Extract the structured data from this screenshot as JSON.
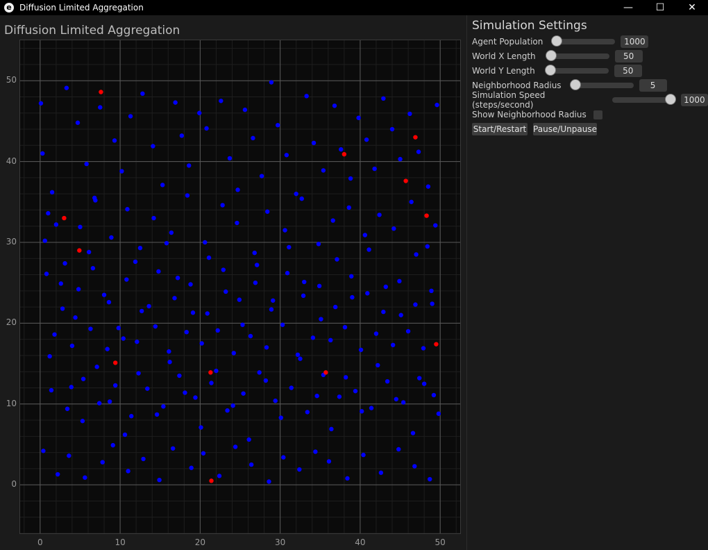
{
  "window": {
    "title": "Diffusion Limited Aggregation",
    "app_icon": "e",
    "controls": {
      "minimize": "—",
      "maximize": "☐",
      "close": "✕"
    }
  },
  "plot": {
    "heading": "Diffusion Limited Aggregation",
    "x_ticks": [
      "0",
      "10",
      "20",
      "30",
      "40",
      "50"
    ],
    "y_ticks": [
      "0",
      "10",
      "20",
      "30",
      "40",
      "50"
    ],
    "colors": {
      "free_agent": "#0000ff",
      "aggregated_agent": "#ff0000",
      "background": "#0b0b0b"
    }
  },
  "chart_data": {
    "type": "scatter",
    "title": "Diffusion Limited Aggregation",
    "xlim": [
      -2.5,
      52.5
    ],
    "ylim": [
      -6,
      55
    ],
    "grid": true,
    "series": [
      {
        "color": "#ff0000",
        "x": [
          7.6,
          46.9,
          38.0,
          45.7,
          3.0,
          48.3,
          4.9,
          9.4,
          21.3,
          35.7,
          49.5,
          21.4
        ],
        "y": [
          48.6,
          43.0,
          40.9,
          37.6,
          33.0,
          33.3,
          29.0,
          15.1,
          13.9,
          13.9,
          17.4,
          0.5
        ]
      },
      {
        "color": "#0000ff",
        "x": [
          0.1,
          0.3,
          1.5,
          2.0,
          3.3,
          4.7,
          5.8,
          6.8,
          7.5,
          9.3,
          10.2,
          11.3,
          12.8,
          14.1,
          15.3,
          16.9,
          17.7,
          18.6,
          19.9,
          20.8,
          22.6,
          23.7,
          24.7,
          25.6,
          26.6,
          27.7,
          28.9,
          29.7,
          30.8,
          32.0,
          33.3,
          34.2,
          35.4,
          36.8,
          37.6,
          38.8,
          39.8,
          40.8,
          41.8,
          42.9,
          44.0,
          45.0,
          46.2,
          47.3,
          48.5,
          49.6,
          0.6,
          2.6,
          4.4,
          6.1,
          8.0,
          9.8,
          11.9,
          13.6,
          15.8,
          17.2,
          19.1,
          21.1,
          23.2,
          25.3,
          27.1,
          29.1,
          31.1,
          33.0,
          35.1,
          37.1,
          39.0,
          41.1,
          43.2,
          45.1,
          47.0,
          49.0,
          1.2,
          3.9,
          5.3,
          7.1,
          8.7,
          10.6,
          12.3,
          14.6,
          16.2,
          18.1,
          20.1,
          22.0,
          24.1,
          26.1,
          28.2,
          30.1,
          32.5,
          34.6,
          36.4,
          38.2,
          40.2,
          42.2,
          44.5,
          46.6,
          48.0,
          49.8,
          0.4,
          2.2,
          3.6,
          5.6,
          7.8,
          9.1,
          11.0,
          12.9,
          14.9,
          16.6,
          18.9,
          20.4,
          22.4,
          24.4,
          26.4,
          28.6,
          30.4,
          32.4,
          34.4,
          36.1,
          38.4,
          40.4,
          42.6,
          44.8,
          46.8,
          48.7,
          1.0,
          3.1,
          5.0,
          6.9,
          8.9,
          10.9,
          12.5,
          14.2,
          16.4,
          18.4,
          20.6,
          22.8,
          24.6,
          26.8,
          28.4,
          30.6,
          32.7,
          34.8,
          36.6,
          38.6,
          40.6,
          42.4,
          44.2,
          46.4,
          48.4,
          49.4,
          1.8,
          4.0,
          6.3,
          8.4,
          10.4,
          12.1,
          14.4,
          16.1,
          18.3,
          20.2,
          22.2,
          24.2,
          26.3,
          28.3,
          30.3,
          32.2,
          34.1,
          36.3,
          38.1,
          40.1,
          42.0,
          44.1,
          46.0,
          47.9,
          0.8,
          2.8,
          4.8,
          6.6,
          8.6,
          10.8,
          12.7,
          14.8,
          16.8,
          18.8,
          20.9,
          22.9,
          24.9,
          26.9,
          28.9,
          30.9,
          32.9,
          34.9,
          36.9,
          38.9,
          40.9,
          42.9,
          44.9,
          46.9,
          48.9,
          1.4,
          3.4,
          5.4,
          7.4,
          9.4,
          11.4,
          13.4,
          15.4,
          17.4,
          19.4,
          21.4,
          23.4,
          25.4,
          27.4,
          29.4,
          31.4,
          33.4,
          35.4,
          37.4,
          39.4,
          41.4,
          43.4,
          45.4,
          47.4,
          49.2
        ],
        "y": [
          47.2,
          41.0,
          36.2,
          32.2,
          49.1,
          44.8,
          39.7,
          35.5,
          46.7,
          42.6,
          38.8,
          45.6,
          48.4,
          41.9,
          37.1,
          47.3,
          43.2,
          39.5,
          46.0,
          44.1,
          47.5,
          40.4,
          36.5,
          46.4,
          42.9,
          38.2,
          49.8,
          44.5,
          40.8,
          36.0,
          48.1,
          42.3,
          38.9,
          46.9,
          41.5,
          37.9,
          45.4,
          42.7,
          39.1,
          47.8,
          44.0,
          40.3,
          45.9,
          41.2,
          36.9,
          47.0,
          30.2,
          24.9,
          20.7,
          28.8,
          23.5,
          19.4,
          27.6,
          22.1,
          29.9,
          25.6,
          21.3,
          28.1,
          23.9,
          19.8,
          27.2,
          22.8,
          29.4,
          25.1,
          20.5,
          27.9,
          23.2,
          29.1,
          24.5,
          21.0,
          28.5,
          22.4,
          15.9,
          12.1,
          7.9,
          14.6,
          10.3,
          6.2,
          13.8,
          8.7,
          15.2,
          11.4,
          7.1,
          14.1,
          9.8,
          5.6,
          12.9,
          8.3,
          15.6,
          11.0,
          6.9,
          13.3,
          9.1,
          14.8,
          10.6,
          6.4,
          12.5,
          8.8,
          4.2,
          1.3,
          3.6,
          0.9,
          2.8,
          4.9,
          1.7,
          3.2,
          0.6,
          4.5,
          2.1,
          3.9,
          1.1,
          4.7,
          2.5,
          0.4,
          3.4,
          1.9,
          4.1,
          2.9,
          0.8,
          3.7,
          1.5,
          4.4,
          2.3,
          0.7,
          33.6,
          27.4,
          31.9,
          35.2,
          30.6,
          34.1,
          29.3,
          33.0,
          31.2,
          35.8,
          30.0,
          34.6,
          32.4,
          28.7,
          33.8,
          31.5,
          35.4,
          29.8,
          32.7,
          34.3,
          30.9,
          33.4,
          31.7,
          35.0,
          29.5,
          32.1,
          18.6,
          17.2,
          19.3,
          16.8,
          18.1,
          17.7,
          19.6,
          16.5,
          18.9,
          17.5,
          19.1,
          16.3,
          18.4,
          17.0,
          19.8,
          16.1,
          18.2,
          17.9,
          19.5,
          16.7,
          18.7,
          17.3,
          19.0,
          16.9,
          26.1,
          21.8,
          24.2,
          26.8,
          22.6,
          25.4,
          21.5,
          26.4,
          23.1,
          24.8,
          21.2,
          26.6,
          22.9,
          25.0,
          21.7,
          26.2,
          23.4,
          24.6,
          22.0,
          25.8,
          23.7,
          21.4,
          25.2,
          22.3,
          24.0,
          11.7,
          9.4,
          13.1,
          10.1,
          12.3,
          8.5,
          11.9,
          9.7,
          13.5,
          10.8,
          12.6,
          9.2,
          11.3,
          13.9,
          10.4,
          12.0,
          9.0,
          13.6,
          10.9,
          11.6,
          9.5,
          12.8,
          10.2,
          13.2,
          11.1
        ]
      }
    ]
  },
  "settings": {
    "title": "Simulation Settings",
    "agent_population": {
      "label": "Agent Population",
      "value": "1000",
      "fraction": 0.0
    },
    "world_x": {
      "label": "World X Length",
      "value": "50",
      "fraction": 0.0
    },
    "world_y": {
      "label": "World Y Length",
      "value": "50",
      "fraction": 0.0
    },
    "neighborhood_radius": {
      "label": "Neighborhood Radius",
      "value": "5",
      "fraction": 0.0
    },
    "sim_speed": {
      "label": "Simulation Speed (steps/second)",
      "value": "1000",
      "fraction": 1.0
    },
    "show_radius": {
      "label": "Show Neighborhood Radius",
      "checked": false
    },
    "start_button": "Start/Restart",
    "pause_button": "Pause/Unpause"
  }
}
